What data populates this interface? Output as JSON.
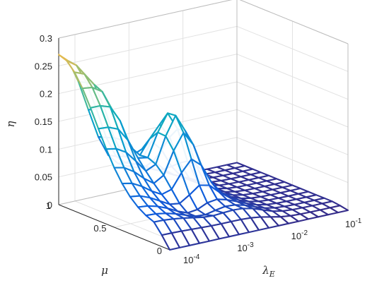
{
  "chart_data": {
    "type": "surface",
    "title": "",
    "xlabel": "λE",
    "xlabel_main": "λ",
    "xlabel_sub": "E",
    "ylabel": "μ",
    "zlabel": "η",
    "x_scale": "log",
    "x_range": [
      5e-05,
      0.1
    ],
    "y_range": [
      0,
      1
    ],
    "z_range": [
      0,
      0.3
    ],
    "grid": true,
    "box": true,
    "colormap": "parula",
    "x_ticks": [
      {
        "value": 0.0001,
        "base": "10",
        "exp": "-4"
      },
      {
        "value": 0.001,
        "base": "10",
        "exp": "-3"
      },
      {
        "value": 0.01,
        "base": "10",
        "exp": "-2"
      },
      {
        "value": 0.1,
        "base": "10",
        "exp": "-1"
      }
    ],
    "y_ticks": [
      {
        "value": 0,
        "label": "0"
      },
      {
        "value": 0.5,
        "label": "0.5"
      },
      {
        "value": 1,
        "label": "1"
      }
    ],
    "z_ticks": [
      {
        "value": 0,
        "label": "0"
      },
      {
        "value": 0.05,
        "label": "0.05"
      },
      {
        "value": 0.1,
        "label": "0.1"
      },
      {
        "value": 0.15,
        "label": "0.15"
      },
      {
        "value": 0.2,
        "label": "0.2"
      },
      {
        "value": 0.25,
        "label": "0.25"
      },
      {
        "value": 0.3,
        "label": "0.3"
      }
    ],
    "mesh": {
      "nx": 18,
      "ny": 14
    },
    "surface": "Wavy surface approximately: ridge near mu = 1 of about 0.27 at low lambda_E, peak about 0.25 near lambda_E = 1e-3, mu = 0.6, basin about 0.03 at mid mu, dropping to 0 for lambda_E above about 1e-2 and at mu = 0."
  }
}
